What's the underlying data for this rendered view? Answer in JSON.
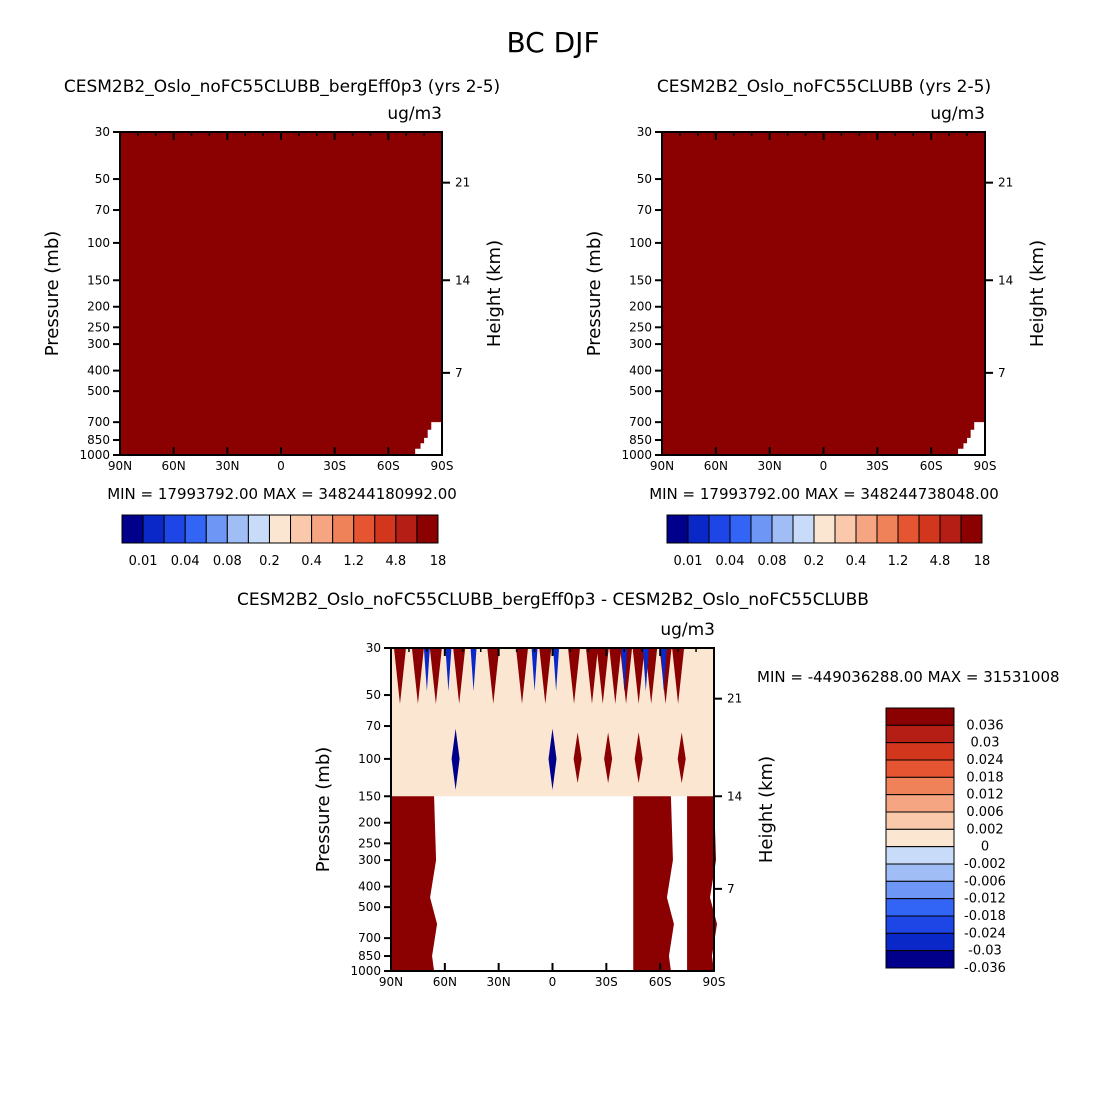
{
  "figure_title": "BC DJF",
  "chart_data": [
    {
      "type": "heatmap",
      "panel": "top-left",
      "title": "CESM2B2_Oslo_noFC55CLUBB_bergEff0p3 (yrs 2-5)",
      "units": "ug/m3",
      "ylabel": "Pressure (mb)",
      "ylabel_right": "Height (km)",
      "x_ticks": [
        "90N",
        "60N",
        "30N",
        "0",
        "30S",
        "60S",
        "90S"
      ],
      "y_ticks": [
        30,
        50,
        70,
        100,
        150,
        200,
        250,
        300,
        400,
        500,
        700,
        850,
        1000
      ],
      "height_ticks": [
        21,
        14,
        7
      ],
      "xlim": [
        90,
        -90
      ],
      "ylim": [
        30,
        1000
      ],
      "stats": "MIN = 17993792.00   MAX = 348244180992.00",
      "fill_color": "#8b0000",
      "field_description": "Entire section above top colorbar level (>18); undefined below surface near 90S"
    },
    {
      "type": "heatmap",
      "panel": "top-right",
      "title": "CESM2B2_Oslo_noFC55CLUBB (yrs 2-5)",
      "units": "ug/m3",
      "ylabel": "Pressure (mb)",
      "ylabel_right": "Height (km)",
      "x_ticks": [
        "90N",
        "60N",
        "30N",
        "0",
        "30S",
        "60S",
        "90S"
      ],
      "y_ticks": [
        30,
        50,
        70,
        100,
        150,
        200,
        250,
        300,
        400,
        500,
        700,
        850,
        1000
      ],
      "height_ticks": [
        21,
        14,
        7
      ],
      "xlim": [
        90,
        -90
      ],
      "ylim": [
        30,
        1000
      ],
      "stats": "MIN = 17993792.00   MAX = 348244738048.00",
      "fill_color": "#8b0000"
    },
    {
      "type": "heatmap",
      "panel": "bottom-difference",
      "title": "CESM2B2_Oslo_noFC55CLUBB_bergEff0p3 - CESM2B2_Oslo_noFC55CLUBB",
      "units": "ug/m3",
      "ylabel": "Pressure (mb)",
      "ylabel_right": "Height (km)",
      "x_ticks": [
        "90N",
        "60N",
        "30N",
        "0",
        "30S",
        "60S",
        "90S"
      ],
      "y_ticks": [
        30,
        50,
        70,
        100,
        150,
        200,
        250,
        300,
        400,
        500,
        700,
        850,
        1000
      ],
      "height_ticks": [
        21,
        14,
        7
      ],
      "xlim": [
        90,
        -90
      ],
      "ylim": [
        30,
        1000
      ],
      "stats": "MIN = -449036288.00   MAX = 31531008",
      "band_value_label": "0",
      "band_pressure_range": [
        30,
        150
      ],
      "upper_red_spikes_lat": [
        85,
        75,
        65,
        52,
        33,
        17,
        4,
        -12,
        -22,
        -28,
        -35,
        -41,
        -48,
        -55,
        -63,
        -70
      ],
      "upper_blue_spikes_lat": [
        70,
        58,
        44,
        10,
        -2,
        -40,
        -52,
        -62
      ],
      "mid_red_blobs_lat": [
        -14,
        -31,
        -48,
        -72
      ],
      "mid_blue_blobs_lat": [
        54,
        0
      ],
      "lower_red_columns_lat": [
        [
          90,
          66
        ],
        [
          -45,
          -66
        ],
        [
          -75,
          -90
        ]
      ]
    }
  ],
  "colorbar_top": {
    "colors": [
      "#00008b",
      "#0a28c8",
      "#1e46e6",
      "#3264f5",
      "#6e96f5",
      "#a0bef5",
      "#c8dcfa",
      "#fbe6d2",
      "#fac8aa",
      "#f5a582",
      "#f0825a",
      "#e65532",
      "#d2371e",
      "#b41e14",
      "#8b0000"
    ],
    "labels": [
      "0.01",
      "0.04",
      "0.08",
      "0.2",
      "0.4",
      "1.2",
      "4.8",
      "18"
    ]
  },
  "colorbar_diff": {
    "colors": [
      "#8b0000",
      "#b41e14",
      "#d2371e",
      "#e65532",
      "#f0825a",
      "#f5a582",
      "#fac8aa",
      "#fbe6d2",
      "#c8dcfa",
      "#a0bef5",
      "#6e96f5",
      "#3264f5",
      "#1e46e6",
      "#0a28c8",
      "#00008b"
    ],
    "labels": [
      "0.036",
      "0.03",
      "0.024",
      "0.018",
      "0.012",
      "0.006",
      "0.002",
      "0",
      "-0.002",
      "-0.006",
      "-0.012",
      "-0.018",
      "-0.024",
      "-0.03",
      "-0.036"
    ]
  }
}
